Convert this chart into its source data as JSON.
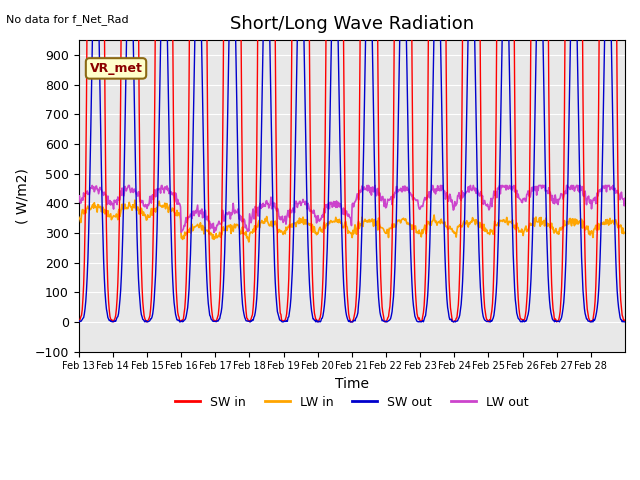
{
  "title": "Short/Long Wave Radiation",
  "xlabel": "Time",
  "ylabel": "( W/m2)",
  "ylim": [
    -100,
    950
  ],
  "yticks": [
    -100,
    0,
    100,
    200,
    300,
    400,
    500,
    600,
    700,
    800,
    900
  ],
  "top_left_text": "No data for f_Net_Rad",
  "box_label": "VR_met",
  "colors": {
    "SW_in": "#ff0000",
    "LW_in": "#ffa500",
    "SW_out": "#0000cc",
    "LW_out": "#cc44cc"
  },
  "legend_labels": [
    "SW in",
    "LW in",
    "SW out",
    "LW out"
  ],
  "x_tick_labels": [
    "Feb 13",
    "Feb 14",
    "Feb 15",
    "Feb 16",
    "Feb 17",
    "Feb 18",
    "Feb 19",
    "Feb 20",
    "Feb 21",
    "Feb 22",
    "Feb 23",
    "Feb 24",
    "Feb 25",
    "Feb 26",
    "Feb 27",
    "Feb 28"
  ],
  "background_color": "#e8e8e8",
  "n_days": 16,
  "points_per_day": 48
}
